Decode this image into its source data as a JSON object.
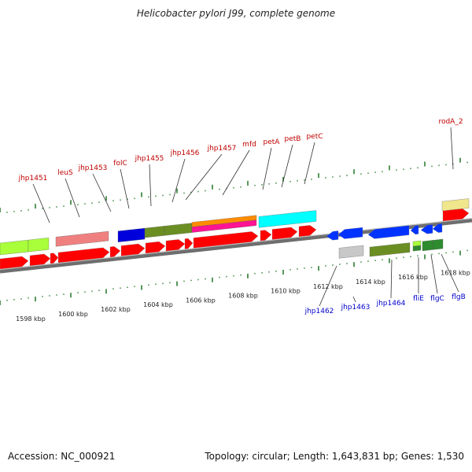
{
  "title": "Helicobacter pylori J99, complete genome",
  "footer": {
    "accession": "Accession: NC_000921",
    "summary": "Topology: circular; Length: 1,643,831 bp; Genes: 1,530"
  },
  "colors": {
    "cds_red": "#ff0000",
    "plus_label": "#c00000",
    "minus_label": "#0000cc",
    "backbone": "#808080",
    "tick": "#2e7d32"
  },
  "scale_labels": [
    "1598 kbp",
    "1600 kbp",
    "1602 kbp",
    "1604 kbp",
    "1606 kbp",
    "1608 kbp",
    "1610 kbp",
    "1612 kbp",
    "1614 kbp",
    "1616 kbp",
    "1618 kbp"
  ],
  "plus_gene_labels": [
    "jhp1451",
    "leuS",
    "jhp1453",
    "folC",
    "jhp1455",
    "jhp1456",
    "jhp1457",
    "mfd",
    "petA",
    "petB",
    "petC",
    "rodA_2"
  ],
  "minus_gene_labels": [
    "jhp1462",
    "jhp1463",
    "jhp1464",
    "fliE",
    "flgC",
    "flgB"
  ],
  "feature_colors": [
    "#a8ff3a",
    "#f08080",
    "#0000dd",
    "#6b8e23",
    "#ff8c00",
    "#ff1493",
    "#00ffff",
    "#f0e68c",
    "#c8c8c8",
    "#0033ff",
    "#2e8b2e"
  ]
}
